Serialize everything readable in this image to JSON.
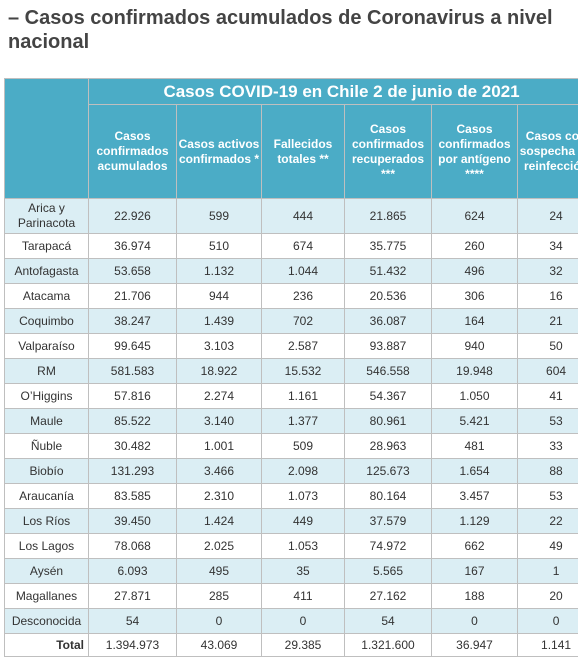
{
  "heading": "– Casos confirmados acumulados de Coronavirus a nivel nacional",
  "table": {
    "caption": "Casos COVID-19 en Chile 2 de junio de 2021",
    "columns": [
      "Casos confirmados acumulados",
      "Casos activos confirmados *",
      "Fallecidos totales **",
      "Casos confirmados recuperados ***",
      "Casos confirmados por antígeno ****",
      "Casos con sospecha de reinfección"
    ],
    "rows": [
      {
        "region": "Arica y Parinacota",
        "values": [
          "22.926",
          "599",
          "444",
          "21.865",
          "624",
          "24"
        ]
      },
      {
        "region": "Tarapacá",
        "values": [
          "36.974",
          "510",
          "674",
          "35.775",
          "260",
          "34"
        ]
      },
      {
        "region": "Antofagasta",
        "values": [
          "53.658",
          "1.132",
          "1.044",
          "51.432",
          "496",
          "32"
        ]
      },
      {
        "region": "Atacama",
        "values": [
          "21.706",
          "944",
          "236",
          "20.536",
          "306",
          "16"
        ]
      },
      {
        "region": "Coquimbo",
        "values": [
          "38.247",
          "1.439",
          "702",
          "36.087",
          "164",
          "21"
        ]
      },
      {
        "region": "Valparaíso",
        "values": [
          "99.645",
          "3.103",
          "2.587",
          "93.887",
          "940",
          "50"
        ]
      },
      {
        "region": "RM",
        "values": [
          "581.583",
          "18.922",
          "15.532",
          "546.558",
          "19.948",
          "604"
        ]
      },
      {
        "region": "O’Higgins",
        "values": [
          "57.816",
          "2.274",
          "1.161",
          "54.367",
          "1.050",
          "41"
        ]
      },
      {
        "region": "Maule",
        "values": [
          "85.522",
          "3.140",
          "1.377",
          "80.961",
          "5.421",
          "53"
        ]
      },
      {
        "region": "Ñuble",
        "values": [
          "30.482",
          "1.001",
          "509",
          "28.963",
          "481",
          "33"
        ]
      },
      {
        "region": "Biobío",
        "values": [
          "131.293",
          "3.466",
          "2.098",
          "125.673",
          "1.654",
          "88"
        ]
      },
      {
        "region": "Araucanía",
        "values": [
          "83.585",
          "2.310",
          "1.073",
          "80.164",
          "3.457",
          "53"
        ]
      },
      {
        "region": "Los Ríos",
        "values": [
          "39.450",
          "1.424",
          "449",
          "37.579",
          "1.129",
          "22"
        ]
      },
      {
        "region": "Los Lagos",
        "values": [
          "78.068",
          "2.025",
          "1.053",
          "74.972",
          "662",
          "49"
        ]
      },
      {
        "region": "Aysén",
        "values": [
          "6.093",
          "495",
          "35",
          "5.565",
          "167",
          "1"
        ]
      },
      {
        "region": "Magallanes",
        "values": [
          "27.871",
          "285",
          "411",
          "27.162",
          "188",
          "20"
        ]
      },
      {
        "region": "Desconocida",
        "values": [
          "54",
          "0",
          "0",
          "54",
          "0",
          "0"
        ]
      }
    ],
    "total": {
      "label": "Total",
      "values": [
        "1.394.973",
        "43.069",
        "29.385",
        "1.321.600",
        "36.947",
        "1.141"
      ]
    }
  },
  "colors": {
    "header_bg": "#4bacc6",
    "stripe_bg": "#dbeef4",
    "header_text": "#ffffff"
  }
}
